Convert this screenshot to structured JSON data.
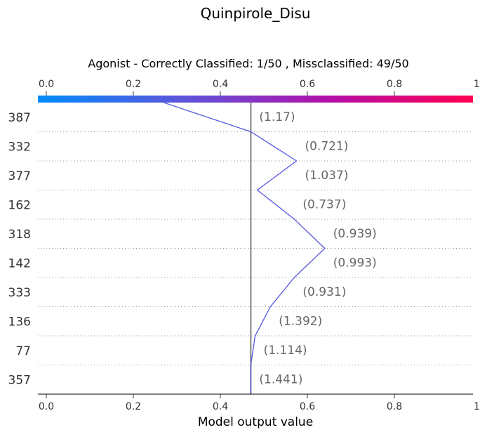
{
  "chart_data": {
    "type": "line",
    "title": "Quinpirole_Disu",
    "subtitle": "Agonist - Correctly Classified: 1/50 , Missclassified: 49/50",
    "xlabel": "Model output value",
    "ylabel": "",
    "xlim": [
      0.0,
      1.0
    ],
    "x_ticks": [
      0.0,
      0.2,
      0.4,
      0.6,
      0.8,
      1.0
    ],
    "x_tick_labels": [
      "0.0",
      "0.2",
      "0.4",
      "0.6",
      "0.8",
      "1.0"
    ],
    "reference_value": 0.47,
    "colormap": [
      "#008bfb",
      "#5d55db",
      "#b20fa9",
      "#ff0051"
    ],
    "line_color": "#5558e0",
    "grid": "dotted horizontal",
    "features": [
      "387",
      "332",
      "377",
      "162",
      "318",
      "142",
      "333",
      "136",
      "77",
      "357"
    ],
    "feature_values": [
      "(1.17)",
      "(0.721)",
      "(1.037)",
      "(0.737)",
      "(0.939)",
      "(0.993)",
      "(0.931)",
      "(1.392)",
      "(1.114)",
      "(1.441)"
    ],
    "path_x": [
      0.27,
      0.47,
      0.575,
      0.485,
      0.57,
      0.64,
      0.57,
      0.515,
      0.48,
      0.47
    ],
    "path_base": 0.47
  }
}
